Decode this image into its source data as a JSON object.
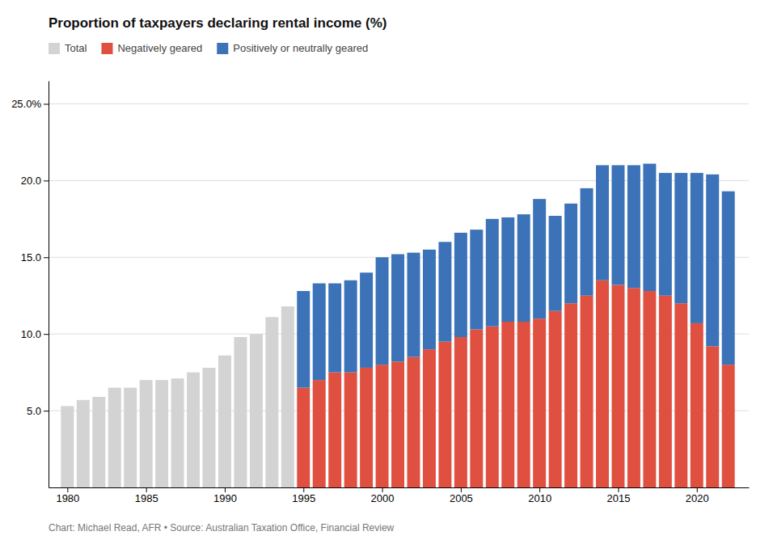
{
  "chart_data": {
    "type": "bar",
    "title": "Proportion of taxpayers declaring rental income (%)",
    "annotations": [
      "Chart: Michael Read, AFR • Source: Australian Taxation Office, Financial Review"
    ],
    "x": [
      1980,
      1981,
      1982,
      1983,
      1984,
      1985,
      1986,
      1987,
      1988,
      1989,
      1990,
      1991,
      1992,
      1993,
      1994,
      1995,
      1996,
      1997,
      1998,
      1999,
      2000,
      2001,
      2002,
      2003,
      2004,
      2005,
      2006,
      2007,
      2008,
      2009,
      2010,
      2011,
      2012,
      2013,
      2014,
      2015,
      2016,
      2017,
      2018,
      2019,
      2020,
      2021,
      2022
    ],
    "series": [
      {
        "name": "Total",
        "color": "#d3d3d3",
        "values": [
          5.3,
          5.7,
          5.9,
          6.5,
          6.5,
          7.0,
          7.0,
          7.1,
          7.5,
          7.8,
          8.6,
          9.8,
          10.0,
          11.1,
          11.8,
          null,
          null,
          null,
          null,
          null,
          null,
          null,
          null,
          null,
          null,
          null,
          null,
          null,
          null,
          null,
          null,
          null,
          null,
          null,
          null,
          null,
          null,
          null,
          null,
          null,
          null,
          null,
          null
        ]
      },
      {
        "name": "Negatively geared",
        "color": "#e05040",
        "values": [
          null,
          null,
          null,
          null,
          null,
          null,
          null,
          null,
          null,
          null,
          null,
          null,
          null,
          null,
          null,
          6.5,
          7.0,
          7.5,
          7.5,
          7.8,
          8.0,
          8.2,
          8.5,
          9.0,
          9.5,
          9.8,
          10.3,
          10.5,
          10.8,
          10.8,
          11.0,
          11.5,
          12.0,
          12.5,
          13.5,
          13.2,
          13.0,
          12.8,
          12.5,
          12.0,
          10.7,
          9.2,
          8.0
        ]
      },
      {
        "name": "Positively or neutrally geared",
        "color": "#3b72b8",
        "values": [
          null,
          null,
          null,
          null,
          null,
          null,
          null,
          null,
          null,
          null,
          null,
          null,
          null,
          null,
          null,
          6.3,
          6.3,
          5.8,
          6.0,
          6.2,
          7.0,
          7.0,
          6.8,
          6.5,
          6.5,
          6.8,
          6.5,
          7.0,
          6.8,
          7.0,
          7.8,
          6.2,
          6.5,
          7.0,
          7.5,
          7.8,
          8.0,
          8.3,
          8.0,
          8.5,
          9.8,
          11.2,
          11.3
        ]
      }
    ],
    "stacked": true,
    "xlim": [
      1978.8,
      2023.3
    ],
    "xticks": [
      1980,
      1985,
      1990,
      1995,
      2000,
      2005,
      2010,
      2015,
      2020
    ],
    "ylim": [
      0,
      26.5
    ],
    "yticks": [
      {
        "value": 5.0,
        "label": "5.0"
      },
      {
        "value": 10.0,
        "label": "10.0"
      },
      {
        "value": 15.0,
        "label": "15.0"
      },
      {
        "value": 20.0,
        "label": "20.0"
      },
      {
        "value": 25.0,
        "label": "25.0%"
      }
    ],
    "grid": true,
    "legend": "top-left"
  }
}
